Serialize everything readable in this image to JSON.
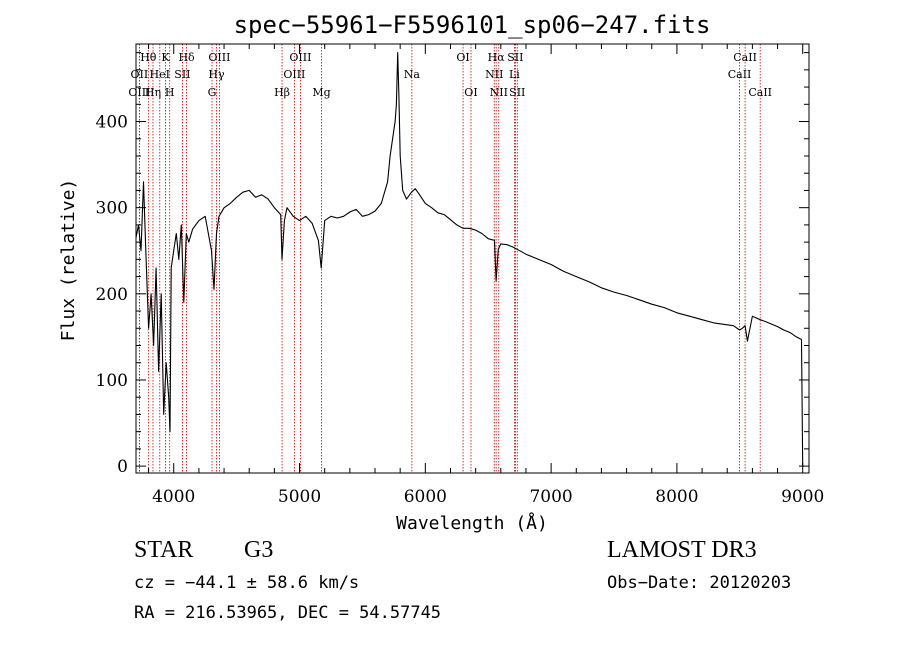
{
  "chart_data": {
    "type": "line",
    "title": "spec−55961−F5596101_sp06−247.fits",
    "xlabel": "Wavelength (Å)",
    "ylabel": "Flux (relative)",
    "xlim": [
      3700,
      9050
    ],
    "ylim": [
      -8,
      490
    ],
    "xticks": [
      4000,
      5000,
      6000,
      7000,
      8000,
      9000
    ],
    "yticks": [
      0,
      100,
      200,
      300,
      400
    ],
    "line_color": "#000000",
    "marker_color": "#cc0000",
    "series": [
      {
        "name": "flux",
        "x": [
          3700,
          3720,
          3740,
          3760,
          3780,
          3800,
          3820,
          3840,
          3860,
          3880,
          3900,
          3920,
          3940,
          3960,
          3970,
          3980,
          4000,
          4020,
          4040,
          4060,
          4080,
          4100,
          4120,
          4150,
          4200,
          4250,
          4300,
          4320,
          4340,
          4360,
          4400,
          4450,
          4500,
          4550,
          4600,
          4650,
          4700,
          4750,
          4800,
          4850,
          4861,
          4880,
          4900,
          4950,
          5000,
          5050,
          5100,
          5150,
          5172,
          5200,
          5250,
          5300,
          5350,
          5400,
          5450,
          5500,
          5550,
          5600,
          5650,
          5700,
          5720,
          5740,
          5760,
          5770,
          5780,
          5790,
          5800,
          5820,
          5850,
          5890,
          5920,
          5950,
          6000,
          6050,
          6100,
          6150,
          6200,
          6250,
          6300,
          6350,
          6400,
          6450,
          6500,
          6550,
          6563,
          6580,
          6600,
          6650,
          6700,
          6750,
          6800,
          6900,
          7000,
          7100,
          7200,
          7300,
          7400,
          7500,
          7600,
          7700,
          7800,
          7900,
          8000,
          8100,
          8200,
          8300,
          8400,
          8450,
          8498,
          8520,
          8542,
          8560,
          8600,
          8630,
          8662,
          8700,
          8750,
          8800,
          8850,
          8900,
          8950,
          8990,
          9000
        ],
        "y": [
          265,
          280,
          250,
          330,
          240,
          160,
          200,
          140,
          230,
          110,
          200,
          60,
          120,
          80,
          40,
          230,
          250,
          270,
          240,
          280,
          190,
          270,
          260,
          275,
          285,
          290,
          250,
          205,
          270,
          290,
          300,
          305,
          312,
          318,
          320,
          312,
          315,
          310,
          300,
          292,
          240,
          285,
          300,
          290,
          285,
          290,
          282,
          262,
          230,
          285,
          290,
          288,
          290,
          295,
          298,
          290,
          292,
          296,
          305,
          330,
          360,
          380,
          400,
          420,
          480,
          430,
          360,
          320,
          310,
          318,
          322,
          316,
          305,
          300,
          294,
          292,
          286,
          280,
          276,
          276,
          274,
          270,
          264,
          262,
          215,
          252,
          258,
          257,
          254,
          250,
          246,
          240,
          234,
          226,
          220,
          214,
          207,
          202,
          198,
          193,
          188,
          184,
          178,
          174,
          170,
          166,
          164,
          163,
          158,
          160,
          163,
          145,
          174,
          172,
          170,
          168,
          165,
          162,
          158,
          155,
          150,
          147,
          0
        ]
      }
    ],
    "lines": [
      {
        "label": "Hθ",
        "x": 3798,
        "row": 0
      },
      {
        "label": "OII",
        "x": 3727,
        "row": 1
      },
      {
        "label": "OIII",
        "x": 3727,
        "row": 2
      },
      {
        "label": "Hη",
        "x": 3835,
        "row": 2
      },
      {
        "label": "HeI",
        "x": 3889,
        "row": 1
      },
      {
        "label": "K",
        "x": 3934,
        "row": 0
      },
      {
        "label": "SII",
        "x": 4069,
        "row": 1
      },
      {
        "label": "H",
        "x": 3968,
        "row": 2
      },
      {
        "label": "Hδ",
        "x": 4102,
        "row": 0
      },
      {
        "label": "OIII",
        "x": 4363,
        "row": 0
      },
      {
        "label": "Hγ",
        "x": 4340,
        "row": 1
      },
      {
        "label": "G",
        "x": 4304,
        "row": 2
      },
      {
        "label": "OIII",
        "x": 5007,
        "row": 0
      },
      {
        "label": "OIII",
        "x": 4959,
        "row": 1
      },
      {
        "label": "Hβ",
        "x": 4861,
        "row": 2
      },
      {
        "label": "Mg",
        "x": 5175,
        "row": 2
      },
      {
        "label": "Na",
        "x": 5893,
        "row": 1
      },
      {
        "label": "OI",
        "x": 6300,
        "row": 0
      },
      {
        "label": "OI",
        "x": 6363,
        "row": 2
      },
      {
        "label": "Hα",
        "x": 6563,
        "row": 0
      },
      {
        "label": "SII",
        "x": 6716,
        "row": 0
      },
      {
        "label": "NII",
        "x": 6548,
        "row": 1
      },
      {
        "label": "Li",
        "x": 6708,
        "row": 1
      },
      {
        "label": "NII",
        "x": 6584,
        "row": 2
      },
      {
        "label": "SII",
        "x": 6731,
        "row": 2
      },
      {
        "label": "CaII",
        "x": 8542,
        "row": 0
      },
      {
        "label": "CaII",
        "x": 8498,
        "row": 1
      },
      {
        "label": "CaII",
        "x": 8662,
        "row": 2
      }
    ]
  },
  "info": {
    "class": "STAR",
    "subclass": "G3",
    "cz": "cz = −44.1 ± 58.6 km/s",
    "coords": "RA = 216.53965, DEC =  54.57745",
    "survey": "LAMOST DR3",
    "obs_date": "Obs−Date: 20120203"
  }
}
